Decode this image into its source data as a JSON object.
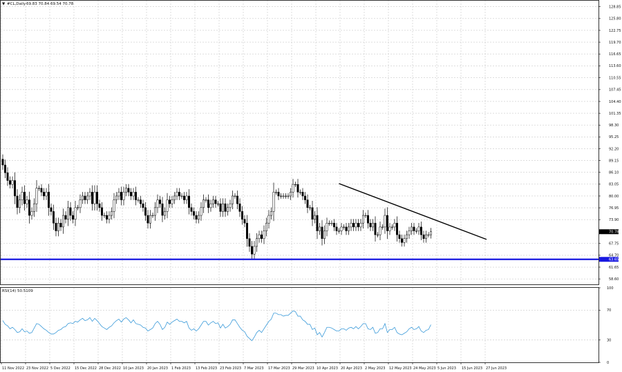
{
  "header": {
    "arrow": "▼",
    "symbol": "#CL,Daily",
    "ohlc": "69.83 70.84 69.54 70.78"
  },
  "chart_data": {
    "type": "candlestick",
    "price_axis": {
      "ylim": [
        57.2,
        130.4
      ],
      "ticks": [
        "128.85",
        "125.80",
        "122.75",
        "119.70",
        "116.65",
        "113.60",
        "110.55",
        "107.45",
        "104.40",
        "101.35",
        "98.30",
        "95.25",
        "92.20",
        "89.15",
        "86.10",
        "83.05",
        "80.00",
        "76.95",
        "73.90",
        "67.75",
        "64.70",
        "61.65",
        "58.60"
      ],
      "last_price_label": "70.78",
      "last_price_value": 70.78,
      "support_label": "63.65",
      "support_value": 63.65
    },
    "x_labels": [
      "11 Nov 2022",
      "23 Nov 2022",
      "5 Dec 2022",
      "15 Dec 2022",
      "28 Dec 2022",
      "10 Jan 2023",
      "20 Jan 2023",
      "1 Feb 2023",
      "13 Feb 2023",
      "23 Feb 2023",
      "7 Mar 2023",
      "17 Mar 2023",
      "29 Mar 2023",
      "10 Apr 2023",
      "20 Apr 2023",
      "2 May 2023",
      "12 May 2023",
      "24 May 2023",
      "5 Jun 2023",
      "15 Jun 2023",
      "27 Jun 2023"
    ],
    "closes": [
      88,
      86,
      84,
      83,
      84,
      80,
      77,
      79,
      81,
      78,
      79,
      75,
      76,
      78,
      82,
      82,
      81,
      80,
      81,
      77,
      76,
      73,
      71,
      73,
      72,
      75,
      74,
      77,
      75,
      74,
      77,
      77,
      79,
      80,
      79,
      80,
      81,
      78,
      81,
      78,
      77,
      75,
      75,
      74,
      75,
      76,
      79,
      80,
      81,
      79,
      81,
      82,
      81,
      80,
      81,
      79,
      79,
      78,
      77,
      75,
      73,
      75,
      75,
      77,
      79,
      78,
      75,
      76,
      79,
      78,
      79,
      80,
      81,
      80,
      80,
      79,
      80,
      77,
      76,
      75,
      74,
      75,
      77,
      79,
      79,
      77,
      78,
      79,
      78,
      78,
      76,
      78,
      76,
      77,
      78,
      80,
      80,
      78,
      76,
      74,
      73,
      69,
      67,
      65,
      67,
      69,
      70,
      69,
      71,
      73,
      75,
      76,
      81,
      81,
      80,
      80,
      80,
      80,
      80,
      81,
      83,
      83,
      81,
      81,
      80,
      79,
      77,
      77,
      74,
      75,
      71,
      72,
      69,
      71,
      73,
      73,
      73,
      72,
      71,
      71,
      72,
      72,
      71,
      72,
      73,
      72,
      73,
      72,
      73,
      75,
      75,
      73,
      72,
      73,
      70,
      70,
      72,
      72,
      75,
      71,
      72,
      72,
      73,
      70,
      69,
      68,
      69,
      70,
      71,
      72,
      71,
      71,
      72,
      70,
      69,
      70,
      70,
      70.78
    ],
    "trendline": {
      "start_x_index": 139,
      "start_price": 83.2,
      "end_x_index": 200,
      "end_price": 68.8
    },
    "rsi": {
      "label": "RSI(14) 50.5109",
      "ylim": [
        0,
        100
      ],
      "ticks": [
        "100",
        "70",
        "30",
        "0"
      ],
      "values": [
        56,
        51,
        49,
        45,
        47,
        44,
        40,
        41,
        45,
        41,
        42,
        39,
        40,
        46,
        52,
        51,
        48,
        45,
        43,
        40,
        38,
        38,
        40,
        43,
        44,
        47,
        48,
        52,
        53,
        52,
        55,
        54,
        57,
        59,
        56,
        57,
        60,
        55,
        59,
        56,
        52,
        48,
        46,
        44,
        47,
        49,
        53,
        56,
        58,
        54,
        58,
        60,
        57,
        53,
        57,
        52,
        51,
        50,
        47,
        46,
        42,
        44,
        46,
        52,
        55,
        51,
        44,
        47,
        54,
        51,
        54,
        56,
        58,
        55,
        55,
        53,
        55,
        46,
        43,
        45,
        42,
        45,
        50,
        55,
        55,
        50,
        53,
        55,
        52,
        53,
        46,
        51,
        46,
        48,
        51,
        57,
        57,
        52,
        47,
        43,
        41,
        35,
        32,
        29,
        34,
        40,
        43,
        40,
        45,
        50,
        55,
        58,
        66,
        66,
        64,
        64,
        62,
        63,
        63,
        66,
        69,
        68,
        62,
        62,
        57,
        55,
        51,
        51,
        44,
        46,
        37,
        40,
        34,
        40,
        47,
        47,
        46,
        44,
        42,
        42,
        45,
        45,
        43,
        46,
        47,
        45,
        48,
        45,
        48,
        52,
        52,
        45,
        44,
        47,
        39,
        40,
        45,
        45,
        52,
        40,
        44,
        44,
        47,
        40,
        38,
        37,
        39,
        41,
        45,
        47,
        44,
        45,
        48,
        42,
        40,
        43,
        44,
        50.51
      ]
    }
  }
}
